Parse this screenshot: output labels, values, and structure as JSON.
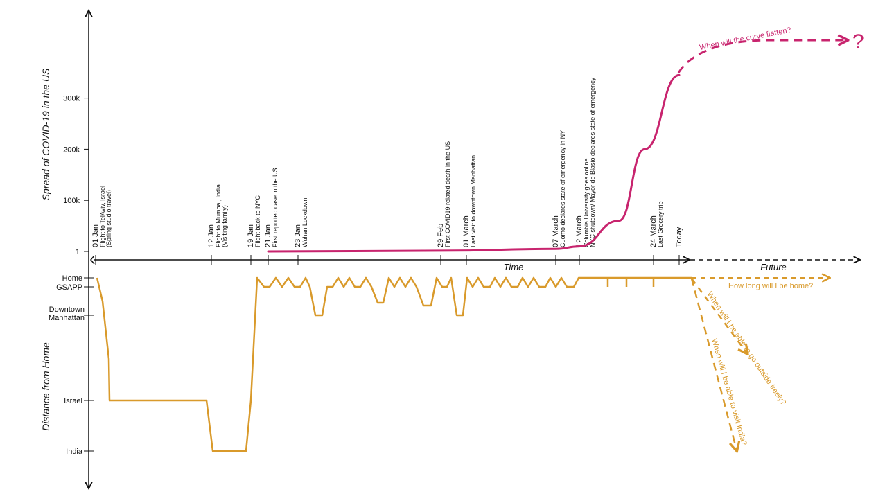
{
  "colors": {
    "covid": "#C8246E",
    "distance": "#D99A2B",
    "axis": "#111111"
  },
  "chart_data": [
    {
      "type": "line",
      "title": "",
      "ylabel": "Spread of COVID-19 in the US",
      "y_ticks": [
        {
          "label": "1",
          "value": 1
        },
        {
          "label": "100k",
          "value": 100000
        },
        {
          "label": "200k",
          "value": 200000
        },
        {
          "label": "300k",
          "value": 300000
        }
      ],
      "series": [
        {
          "name": "",
          "points": [
            {
              "x": "21 Jan",
              "y": 1
            },
            {
              "x": "29 Feb",
              "y": 1500
            },
            {
              "x": "07 March",
              "y": 5000
            },
            {
              "x": "12 March",
              "y": 10000
            },
            {
              "x": "17 March",
              "y": 60000
            },
            {
              "x": "22 March",
              "y": 200000
            },
            {
              "x": "Today",
              "y": 345000
            }
          ],
          "projection": {
            "label": "When will the curve flatten?",
            "end_marker": "?"
          }
        }
      ]
    },
    {
      "type": "line",
      "title": "",
      "ylabel": "Distance from Home",
      "y_levels": [
        {
          "label": "Home",
          "level": 0
        },
        {
          "label": "GSAPP",
          "level": 1
        },
        {
          "label": "Downtown Manhattan",
          "level": 2
        },
        {
          "label": "Israel",
          "level": 3
        },
        {
          "label": "India",
          "level": 4
        }
      ],
      "series": [
        {
          "name": "",
          "points": [
            {
              "x": "01 Jan",
              "y": "Home"
            },
            {
              "x": "01 Jan",
              "y": "Israel"
            },
            {
              "x": "12 Jan",
              "y": "Israel"
            },
            {
              "x": "12 Jan",
              "y": "India"
            },
            {
              "x": "19 Jan",
              "y": "India"
            },
            {
              "x": "19 Jan",
              "y": "Home"
            },
            {
              "x": "23 Jan",
              "y": "Downtown Manhattan"
            },
            {
              "x": "29 Feb",
              "y": "Downtown Manhattan"
            },
            {
              "x": "01 March",
              "y": "Downtown Manhattan"
            },
            {
              "x": "12 March",
              "y": "Home"
            },
            {
              "x": "Today",
              "y": "Home"
            }
          ],
          "projections": [
            "How long will I be home?",
            "When will I be able to go outside freely?",
            "When will I be able to visit India?"
          ]
        }
      ]
    }
  ],
  "x_axis": {
    "label_time": "Time",
    "label_future": "Future",
    "events": [
      {
        "date": "01 Jan",
        "lines": [
          "Flight to TelAviv, Israel",
          "(Spring studio travel)"
        ]
      },
      {
        "date": "12 Jan",
        "lines": [
          "Flight to Mumbai, India",
          "(Visiting family)"
        ]
      },
      {
        "date": "19 Jan",
        "lines": [
          "Flight back to NYC"
        ]
      },
      {
        "date": "21 Jan",
        "lines": [
          "First reported case in the US"
        ]
      },
      {
        "date": "23 Jan",
        "lines": [
          "Wuhan Lockdown"
        ]
      },
      {
        "date": "29 Feb",
        "lines": [
          "First COVID19 related death in the US"
        ]
      },
      {
        "date": "01 March",
        "lines": [
          "Last visit to downtown Manhattan"
        ]
      },
      {
        "date": "07 March",
        "lines": [
          "Cuomo declares state of emergency in NY"
        ]
      },
      {
        "date": "12 March",
        "lines": [
          "Columbia University goes online",
          "NYC shutdown/ Mayor de Blasio declares state of emergency"
        ]
      },
      {
        "date": "24 March",
        "lines": [
          "Last Grocery trip"
        ]
      },
      {
        "date": "Today",
        "lines": []
      }
    ]
  }
}
